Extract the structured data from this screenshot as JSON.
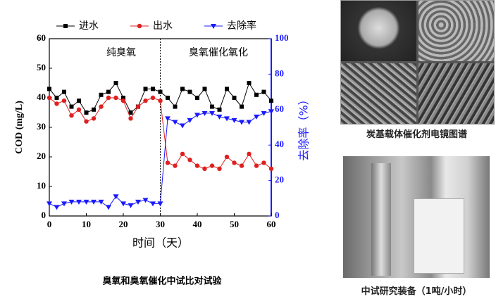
{
  "chart_data": {
    "type": "line",
    "annotations": [
      "纯臭氧",
      "臭氧催化氧化"
    ],
    "divider_x": 30,
    "xlabel": "时间（天）",
    "ylabel": "COD (mg/L)",
    "y2label": "去除率（%）",
    "x": [
      0,
      2,
      4,
      6,
      8,
      10,
      12,
      14,
      16,
      18,
      20,
      22,
      24,
      26,
      28,
      30,
      32,
      34,
      36,
      38,
      40,
      42,
      44,
      46,
      48,
      50,
      52,
      54,
      56,
      58,
      60
    ],
    "xlim": [
      0,
      60
    ],
    "xticks": [
      0,
      10,
      20,
      30,
      40,
      50,
      60
    ],
    "ylim": [
      0,
      60
    ],
    "yticks": [
      0,
      10,
      20,
      30,
      40,
      50,
      60
    ],
    "y2lim": [
      0,
      100
    ],
    "y2ticks": [
      0,
      20,
      40,
      60,
      80,
      100
    ],
    "series": [
      {
        "name": "进水",
        "color": "#000000",
        "marker": "square",
        "values": [
          43,
          40,
          42,
          37,
          39,
          35,
          36,
          41,
          42,
          45,
          40,
          35,
          37,
          43,
          43,
          42,
          40,
          37,
          43,
          42,
          40,
          43,
          37,
          36,
          43,
          40,
          37,
          45,
          41,
          42,
          39
        ]
      },
      {
        "name": "出水",
        "color": "#e02020",
        "marker": "circle",
        "values": [
          40,
          38,
          39,
          34,
          36,
          32,
          33,
          37,
          40,
          40,
          39,
          33,
          37,
          39,
          40,
          39,
          18,
          17,
          21,
          19,
          17,
          16,
          17,
          16,
          20,
          18,
          17,
          21,
          17,
          18,
          16
        ]
      },
      {
        "name": "去除率",
        "color": "#1a1aff",
        "marker": "triangle",
        "axis": "y2",
        "values": [
          7,
          5,
          7,
          8,
          8,
          8,
          8,
          8,
          5,
          11,
          7,
          6,
          8,
          9,
          7,
          7,
          55,
          53,
          51,
          54,
          57,
          58,
          58,
          56,
          55,
          54,
          53,
          53,
          56,
          58,
          59
        ]
      }
    ]
  },
  "figure_caption": "臭氧和臭氧催化中试比对试验",
  "images": [
    {
      "caption": "炭基载体催化剂电镜图谱"
    },
    {
      "caption": "中试研究装备（1吨/小时）"
    }
  ]
}
